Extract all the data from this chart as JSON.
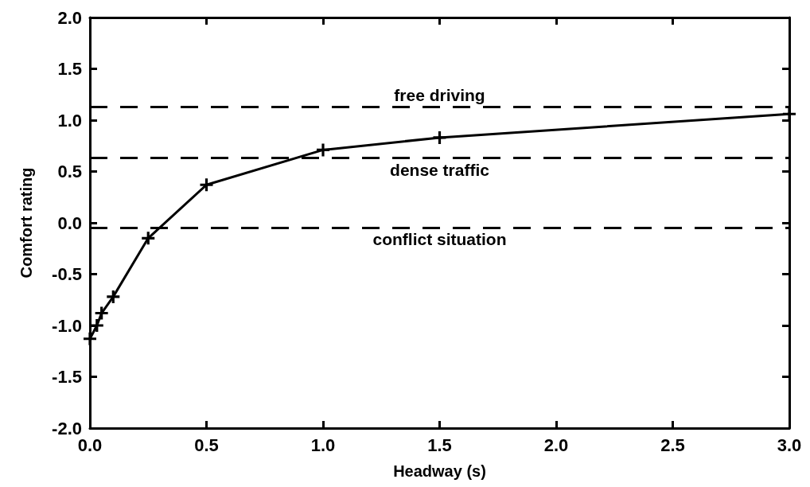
{
  "chart_data": {
    "type": "line",
    "xlabel": "Headway (s)",
    "ylabel": "Comfort rating",
    "series": [
      {
        "color": "#000000",
        "x": [
          0,
          0.03,
          0.05,
          0.1,
          0.25,
          0.5,
          1.0,
          1.5,
          3.0
        ],
        "values": [
          -1.13,
          -1.0,
          -0.88,
          -0.72,
          -0.15,
          0.37,
          0.71,
          0.83,
          1.06
        ]
      }
    ],
    "marker": "cross",
    "line_style": "solid",
    "xlim": [
      0,
      3
    ],
    "xticks": [
      {
        "value": 0,
        "label": "0.0"
      },
      {
        "value": 0.5,
        "label": "0.5"
      },
      {
        "value": 1,
        "label": "1.0"
      },
      {
        "value": 1.5,
        "label": "1.5"
      },
      {
        "value": 2,
        "label": "2.0"
      },
      {
        "value": 2.5,
        "label": "2.5"
      },
      {
        "value": 3,
        "label": "3.0"
      }
    ],
    "ylim": [
      -2,
      2
    ],
    "yticks": [
      {
        "value": -2,
        "label": "-2.0"
      },
      {
        "value": -1.5,
        "label": "-1.5"
      },
      {
        "value": -1,
        "label": "-1.0"
      },
      {
        "value": -0.5,
        "label": "-0.5"
      },
      {
        "value": 0,
        "label": "0.0"
      },
      {
        "value": 0.5,
        "label": "0.5"
      },
      {
        "value": 1,
        "label": "1.0"
      },
      {
        "value": 1.5,
        "label": "1.5"
      },
      {
        "value": 2,
        "label": "2.0"
      }
    ],
    "ref_lines": [
      {
        "axis": "y",
        "value": 1.125,
        "label": "free driving",
        "line_style": "dashed"
      },
      {
        "axis": "y",
        "value": 0.63,
        "label": "dense traffic",
        "line_style": "dashed"
      },
      {
        "axis": "y",
        "value": -0.05,
        "label": "conflict situation",
        "line_style": "dashed"
      }
    ],
    "grid": false
  }
}
